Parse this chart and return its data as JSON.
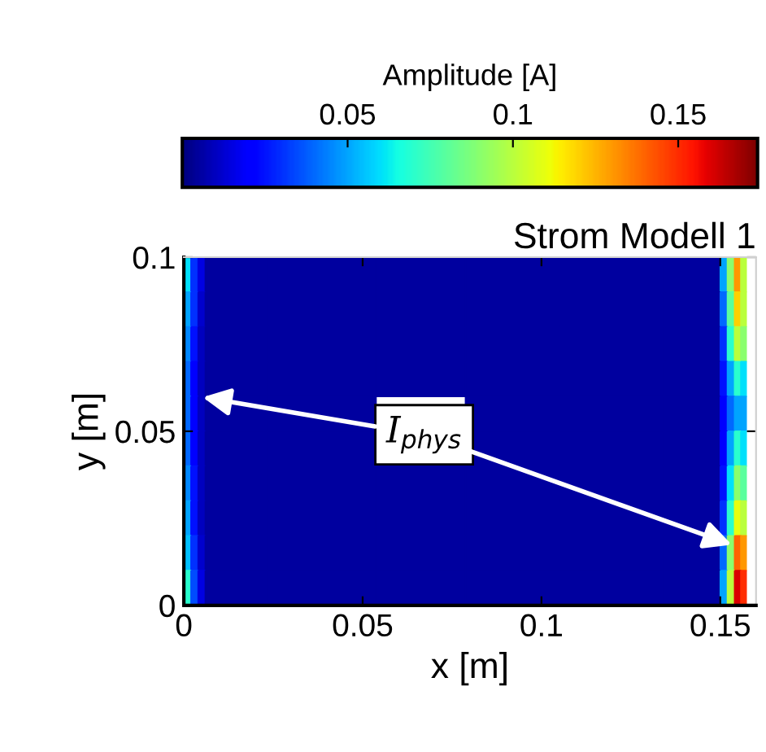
{
  "chart_data": {
    "type": "heatmap",
    "title": "Strom Modell 1",
    "xlabel": "x [m]",
    "ylabel": "y [m]",
    "clabel": "Amplitude [A]",
    "x": [
      0.001,
      0.003,
      0.005,
      0.007,
      0.04,
      0.0675,
      0.09,
      0.12,
      0.149,
      0.151,
      0.153,
      0.155,
      0.1565
    ],
    "y": [
      0.095,
      0.085,
      0.075,
      0.065,
      0.055,
      0.045,
      0.035,
      0.025,
      0.015,
      0.005
    ],
    "cells": [
      [
        0.06,
        0.03,
        0.015,
        0.005,
        0.005,
        0.005,
        0.005,
        0.005,
        0.005,
        0.05,
        0.09,
        0.13,
        0.1
      ],
      [
        0.05,
        0.03,
        0.012,
        0.005,
        0.005,
        0.005,
        0.005,
        0.005,
        0.005,
        0.04,
        0.08,
        0.12,
        0.1
      ],
      [
        0.045,
        0.025,
        0.01,
        0.005,
        0.005,
        0.005,
        0.005,
        0.005,
        0.005,
        0.03,
        0.07,
        0.1,
        0.09
      ],
      [
        0.04,
        0.02,
        0.01,
        0.005,
        0.005,
        0.005,
        0.005,
        0.005,
        0.005,
        0.025,
        0.05,
        0.07,
        0.06
      ],
      [
        0.04,
        0.02,
        0.01,
        0.005,
        0.005,
        null,
        0.005,
        0.005,
        0.005,
        0.02,
        0.04,
        0.05,
        0.05
      ],
      [
        0.04,
        0.02,
        0.01,
        0.005,
        0.005,
        null,
        0.005,
        0.005,
        0.005,
        0.02,
        0.05,
        0.07,
        0.06
      ],
      [
        0.045,
        0.025,
        0.01,
        0.005,
        0.005,
        0.005,
        0.005,
        0.005,
        0.005,
        0.025,
        0.06,
        0.09,
        0.08
      ],
      [
        0.05,
        0.025,
        0.01,
        0.005,
        0.005,
        0.005,
        0.005,
        0.005,
        0.005,
        0.03,
        0.07,
        0.11,
        0.1
      ],
      [
        0.055,
        0.03,
        0.012,
        0.005,
        0.005,
        0.005,
        0.005,
        0.005,
        0.005,
        0.04,
        0.09,
        0.14,
        0.13
      ],
      [
        0.07,
        0.035,
        0.015,
        0.005,
        0.005,
        0.005,
        0.005,
        0.005,
        0.005,
        0.05,
        0.1,
        0.16,
        0.15
      ]
    ],
    "clim": [
      0,
      0.174
    ],
    "cticks": [
      0.05,
      0.1,
      0.15
    ],
    "xlim": [
      0,
      0.16
    ],
    "xticks": [
      0,
      0.05,
      0.1,
      0.15
    ],
    "ylim": [
      0,
      0.1
    ],
    "yticks": [
      0,
      0.05,
      0.1
    ],
    "grid": false,
    "annotations": [
      "I$_{phys}$"
    ]
  }
}
